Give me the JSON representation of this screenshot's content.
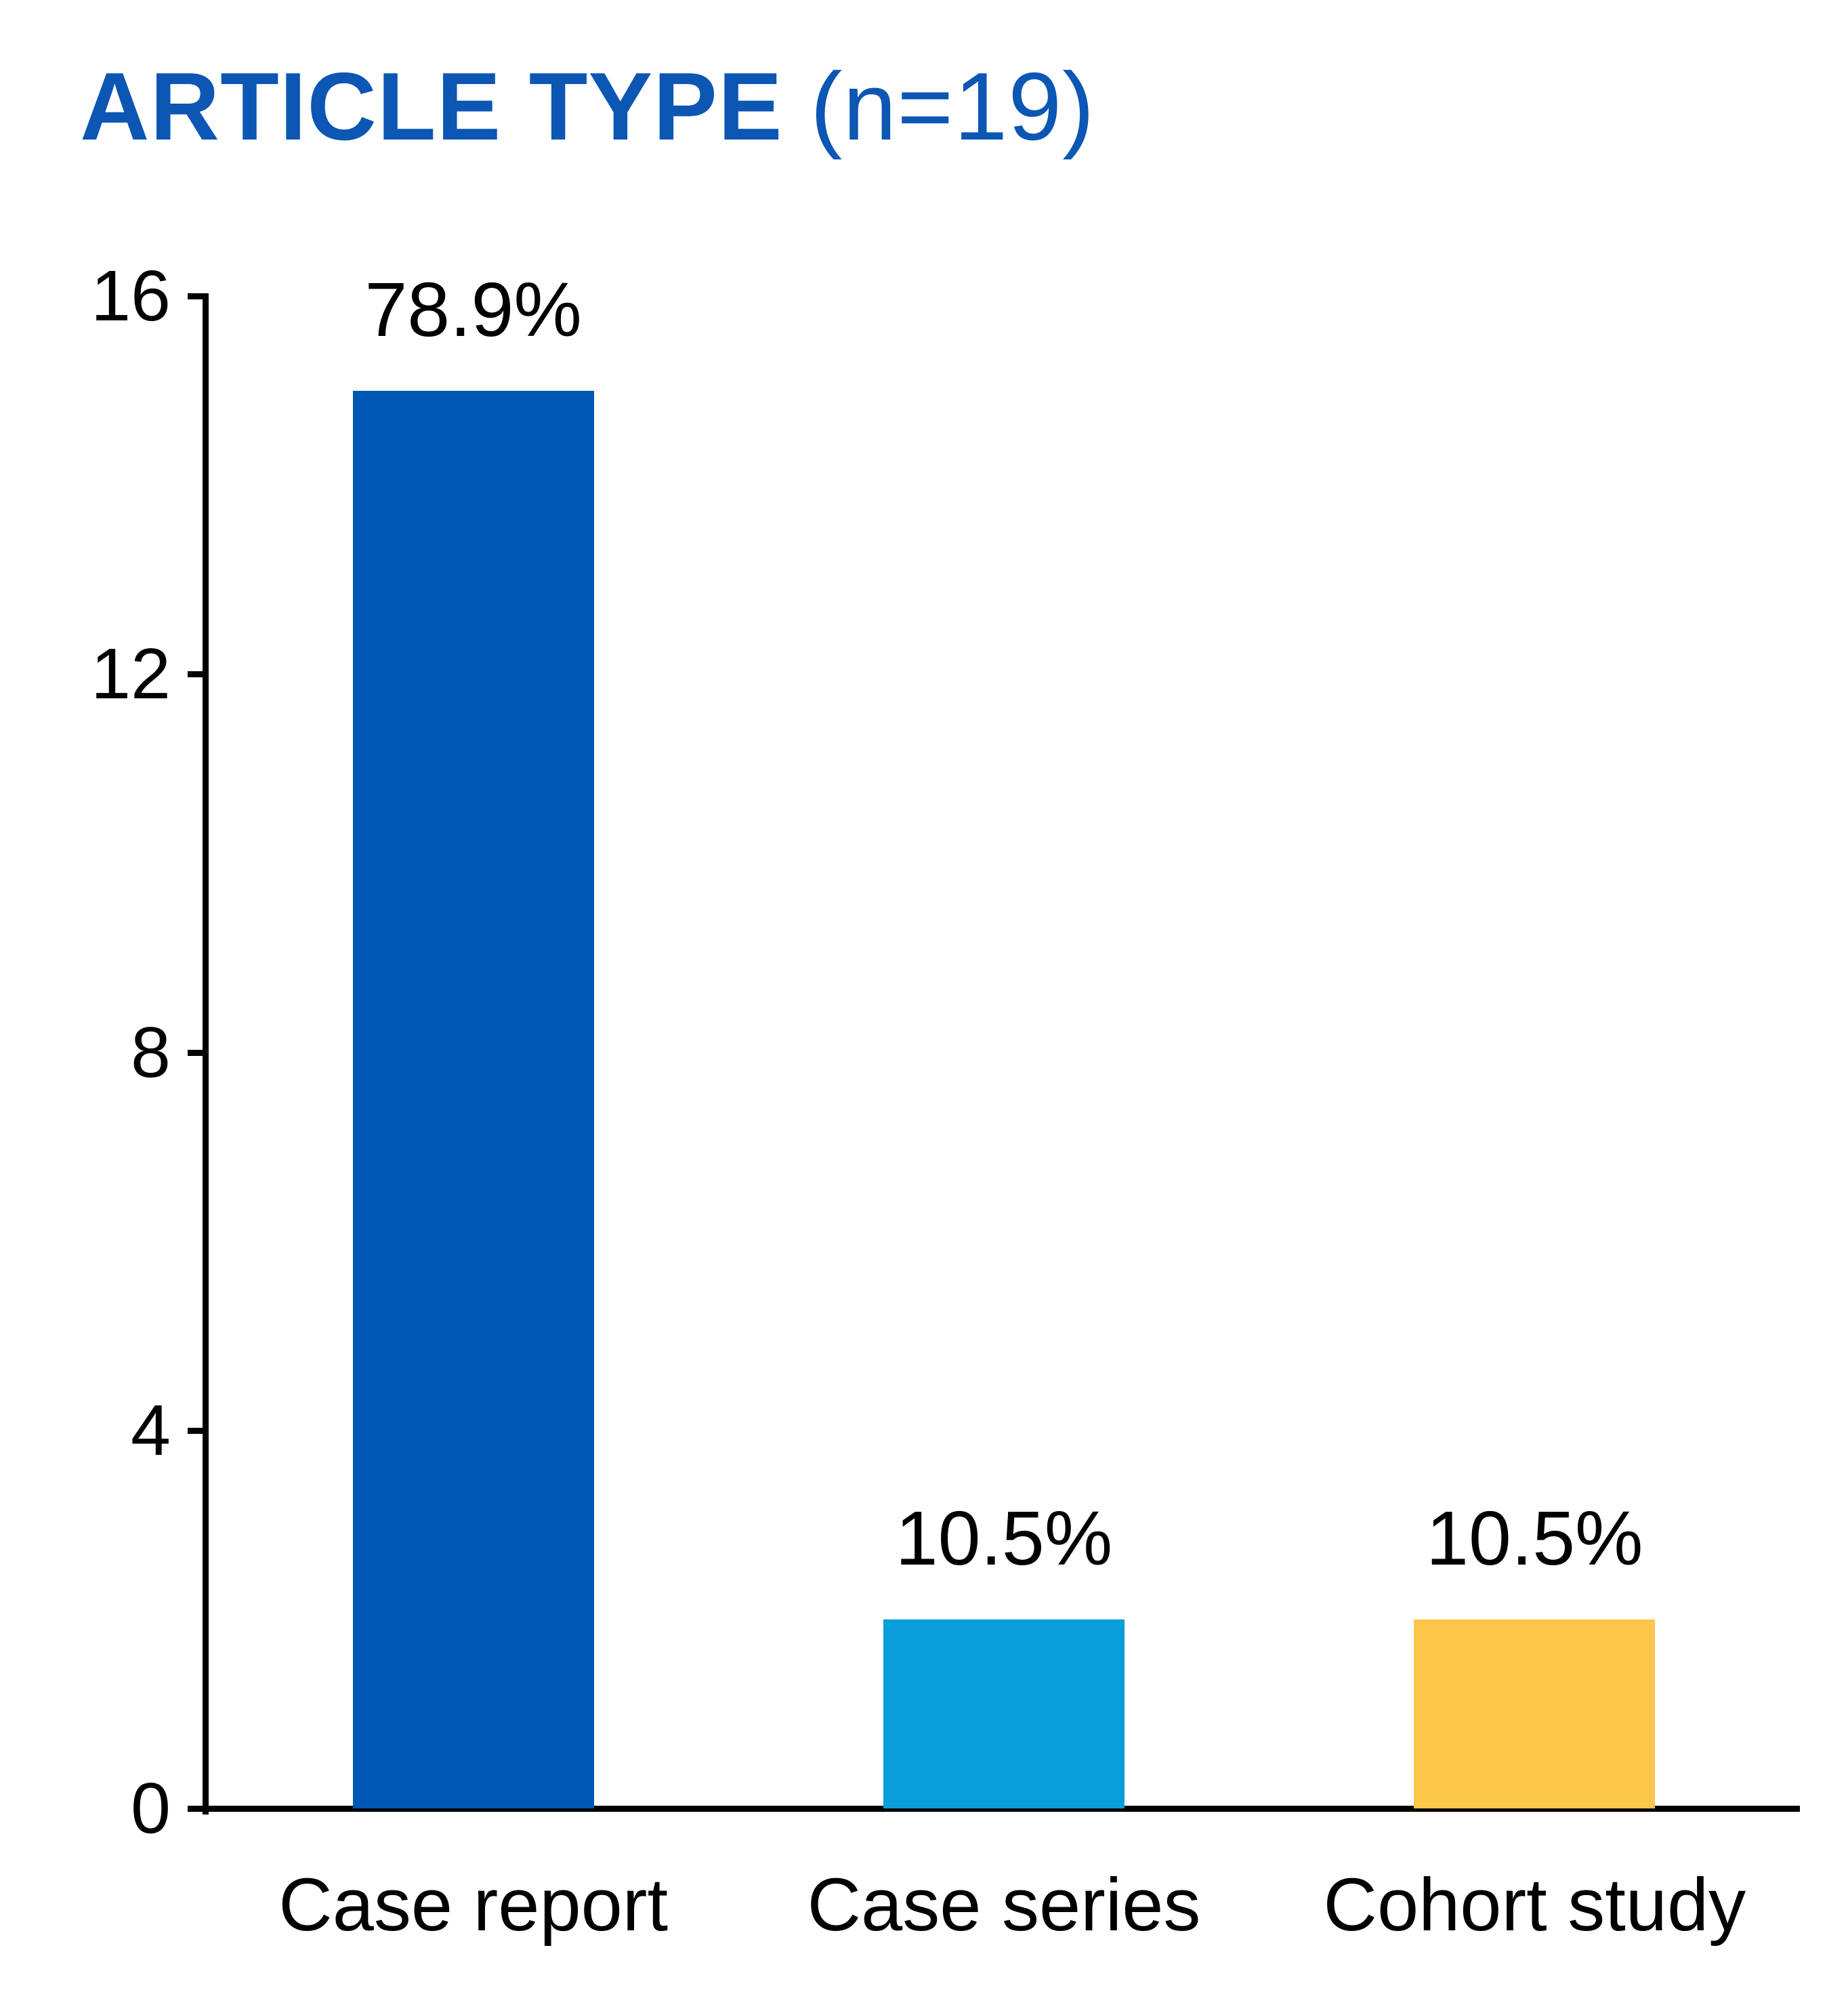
{
  "title": {
    "main": "ARTICLE TYPE ",
    "suffix": "(n=19)",
    "full": "ARTICLE TYPE (n=19)"
  },
  "colors": {
    "title": "#0C56B4",
    "axis": "#000000",
    "label_text": "#000000"
  },
  "chart_data": {
    "type": "bar",
    "title": "ARTICLE TYPE (n=19)",
    "sample_size": 19,
    "categories": [
      "Case report",
      "Case series",
      "Cohort study"
    ],
    "values": [
      15,
      2,
      2
    ],
    "value_labels": [
      "78.9%",
      "10.5%",
      "10.5%"
    ],
    "bar_colors": [
      "#0056B3",
      "#0A9DDB",
      "#FDC74B"
    ],
    "xlabel": "",
    "ylabel": "",
    "ylim": [
      0,
      16
    ],
    "yticks": [
      0,
      4,
      8,
      12,
      16
    ],
    "grid": false,
    "legend": false
  }
}
